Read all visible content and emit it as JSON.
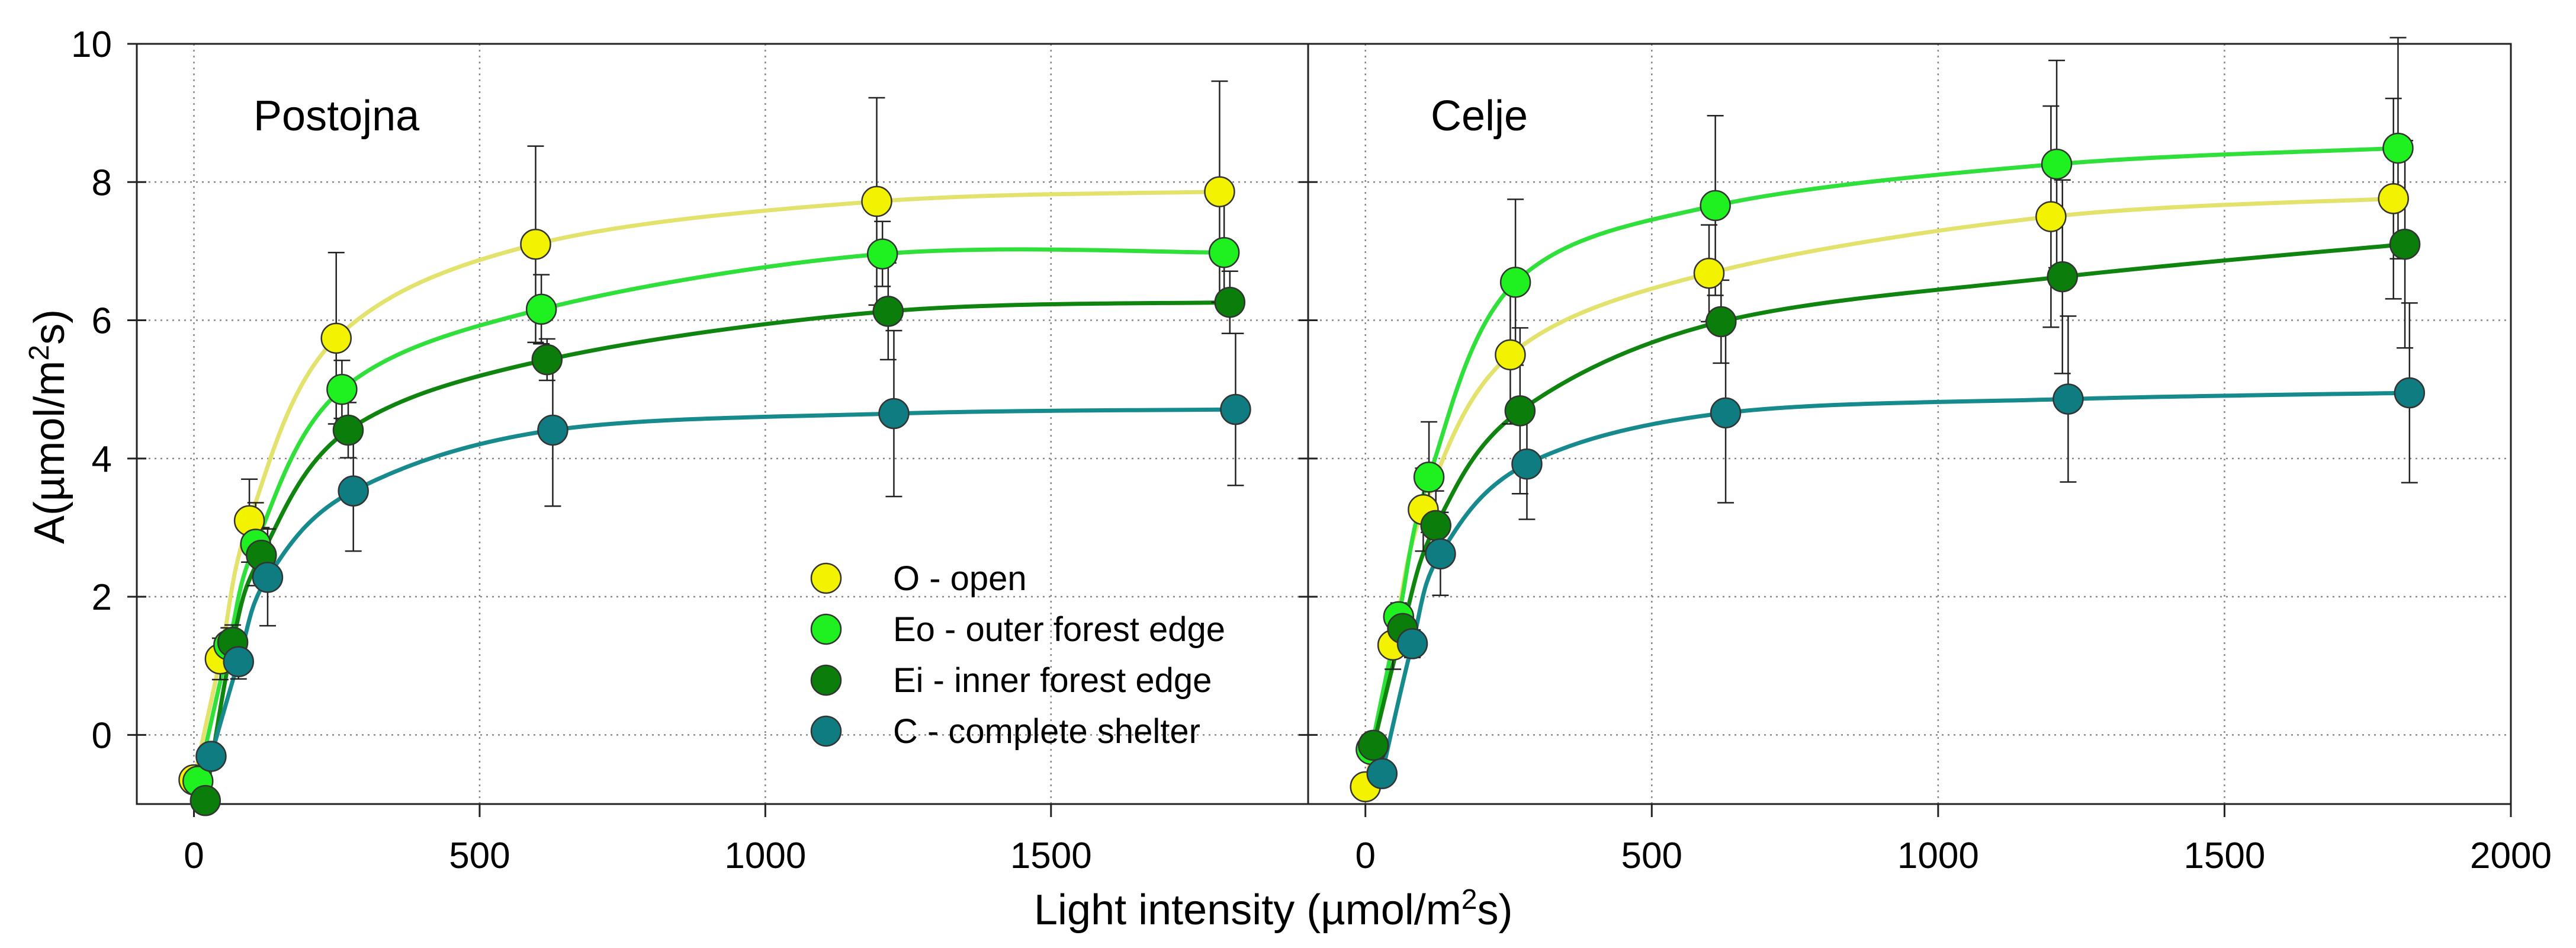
{
  "chart_data": {
    "type": "scatter",
    "ylabel": "A(µmol/m2s)",
    "ylabel_parts": {
      "main": "A(µmol/m",
      "sup": "2",
      "end": "s)"
    },
    "xlabel": "Light intensity (µmol/m2s)",
    "xlabel_parts": {
      "main": "Light intensity (µmol/m",
      "sup": "2",
      "end": "s)"
    },
    "ylim": [
      -1,
      10
    ],
    "yticks": [
      "0",
      "2",
      "4",
      "6",
      "8",
      "10"
    ],
    "grid": true,
    "legend": {
      "placement": "bottom-center of left panel",
      "entries": [
        "O - open",
        "Eo - outer forest edge",
        "Ei - inner forest edge",
        "C - complete shelter"
      ]
    },
    "colors": {
      "O": {
        "marker": "#f3f300",
        "line": "#e2e26c"
      },
      "Eo": {
        "marker": "#1ff01f",
        "line": "#2fe03a"
      },
      "Ei": {
        "marker": "#0b7d0b",
        "line": "#0f840f"
      },
      "C": {
        "marker": "#0e7c80",
        "line": "#168a8c"
      }
    },
    "panels": [
      {
        "title": "Postojna",
        "xlim": [
          -100,
          1950
        ],
        "xticks": [
          "0",
          "500",
          "1000",
          "1500"
        ],
        "series": [
          {
            "name": "O",
            "x": [
              0,
              46,
              97,
              249,
              598,
              1195,
              1795
            ],
            "y": [
              -0.65,
              1.1,
              3.1,
              5.74,
              7.1,
              7.72,
              7.86
            ],
            "err": [
              0.15,
              0.3,
              0.6,
              1.24,
              1.42,
              1.5,
              1.6
            ]
          },
          {
            "name": "Eo",
            "x": [
              7,
              61,
              108,
              259,
              608,
              1205,
              1803
            ],
            "y": [
              -0.67,
              1.3,
              2.76,
              5.0,
              6.16,
              6.96,
              6.98
            ],
            "err": [
              0.1,
              0.25,
              0.6,
              0.42,
              0.5,
              0.47,
              0.8
            ]
          },
          {
            "name": "Ei",
            "x": [
              20,
              68,
              118,
              270,
              618,
              1215,
              1813
            ],
            "y": [
              -0.95,
              1.34,
              2.6,
              4.41,
              5.43,
              6.13,
              6.26
            ],
            "err": [
              0.1,
              0.25,
              0.4,
              0.4,
              0.3,
              0.7,
              0.45
            ]
          },
          {
            "name": "C",
            "x": [
              30,
              78,
              129,
              279,
              628,
              1225,
              1823
            ],
            "y": [
              -0.31,
              1.06,
              2.28,
              3.53,
              4.41,
              4.65,
              4.71
            ],
            "err": [
              0.1,
              0.25,
              0.7,
              0.87,
              1.1,
              1.2,
              1.1
            ]
          }
        ]
      },
      {
        "title": "Celje",
        "xlim": [
          -100,
          2000
        ],
        "xticks": [
          "0",
          "500",
          "1000",
          "1500",
          "2000"
        ],
        "series": [
          {
            "name": "O",
            "x": [
              0,
              48,
              101,
              253,
              600,
              1197,
              1795
            ],
            "y": [
              -0.75,
              1.3,
              3.26,
              5.5,
              6.68,
              7.5,
              7.76
            ],
            "err": [
              0.1,
              0.35,
              0.6,
              1.0,
              0.7,
              1.6,
              1.45
            ]
          },
          {
            "name": "Eo",
            "x": [
              10,
              58,
              111,
              262,
              611,
              1207,
              1803
            ],
            "y": [
              -0.21,
              1.71,
              3.73,
              6.55,
              7.66,
              8.26,
              8.49
            ],
            "err": [
              0.1,
              0.2,
              0.8,
              1.2,
              1.3,
              1.5,
              1.6
            ]
          },
          {
            "name": "Ei",
            "x": [
              14,
              65,
              123,
              270,
              621,
              1217,
              1815
            ],
            "y": [
              -0.15,
              1.54,
              3.03,
              4.69,
              5.98,
              6.63,
              7.1
            ],
            "err": [
              0.1,
              0.2,
              0.5,
              1.2,
              0.6,
              1.4,
              1.5
            ]
          },
          {
            "name": "C",
            "x": [
              29,
              82,
              131,
              282,
              629,
              1227,
              1823
            ],
            "y": [
              -0.56,
              1.32,
              2.62,
              3.92,
              4.66,
              4.86,
              4.95
            ],
            "err": [
              0.1,
              0.2,
              0.6,
              0.8,
              1.3,
              1.2,
              1.3
            ]
          }
        ]
      }
    ]
  }
}
